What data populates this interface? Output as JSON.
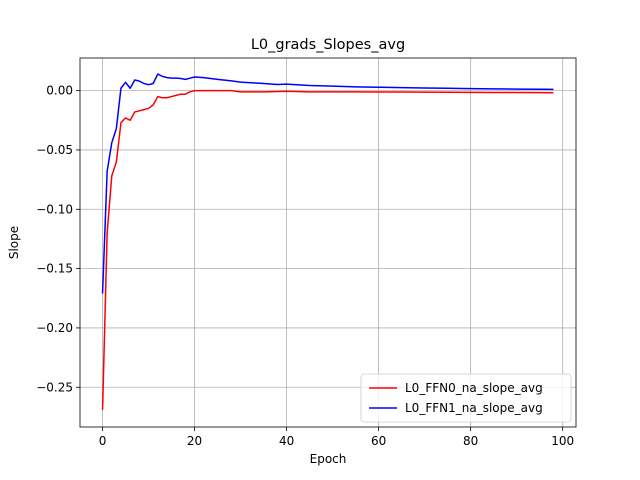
{
  "chart_data": {
    "type": "line",
    "title": "L0_grads_Slopes_avg",
    "xlabel": "Epoch",
    "ylabel": "Slope",
    "xlim": [
      -4.9,
      102.9
    ],
    "ylim": [
      -0.2835,
      0.0275
    ],
    "xticks": [
      0,
      20,
      40,
      60,
      80,
      100
    ],
    "yticks": [
      -0.25,
      -0.2,
      -0.15,
      -0.1,
      -0.05,
      0.0
    ],
    "xtick_labels": [
      "0",
      "20",
      "40",
      "60",
      "80",
      "100"
    ],
    "ytick_labels": [
      "−0.25",
      "−0.20",
      "−0.15",
      "−0.10",
      "−0.05",
      "0.00"
    ],
    "grid": true,
    "legend_position": "lower-right",
    "series": [
      {
        "name": "L0_FFN0_na_slope_avg",
        "color": "#ff0000",
        "points": [
          [
            0,
            -0.269
          ],
          [
            1,
            -0.12
          ],
          [
            2,
            -0.072
          ],
          [
            3,
            -0.06
          ],
          [
            4,
            -0.027
          ],
          [
            5,
            -0.023
          ],
          [
            6,
            -0.025
          ],
          [
            7,
            -0.018
          ],
          [
            8,
            -0.017
          ],
          [
            9,
            -0.016
          ],
          [
            10,
            -0.015
          ],
          [
            11,
            -0.012
          ],
          [
            12,
            -0.005
          ],
          [
            13,
            -0.006
          ],
          [
            14,
            -0.006
          ],
          [
            15,
            -0.005
          ],
          [
            16,
            -0.004
          ],
          [
            17,
            -0.003
          ],
          [
            18,
            -0.003
          ],
          [
            19,
            -0.001
          ],
          [
            20,
            0.0
          ],
          [
            22,
            0.0
          ],
          [
            24,
            0.0
          ],
          [
            26,
            0.0
          ],
          [
            28,
            0.0
          ],
          [
            30,
            -0.001
          ],
          [
            35,
            -0.001
          ],
          [
            40,
            -0.0005
          ],
          [
            45,
            -0.001
          ],
          [
            50,
            -0.001
          ],
          [
            55,
            -0.001
          ],
          [
            60,
            -0.0012
          ],
          [
            65,
            -0.0012
          ],
          [
            70,
            -0.0013
          ],
          [
            75,
            -0.0014
          ],
          [
            80,
            -0.0015
          ],
          [
            85,
            -0.0016
          ],
          [
            90,
            -0.0016
          ],
          [
            95,
            -0.0017
          ],
          [
            98,
            -0.0018
          ]
        ]
      },
      {
        "name": "L0_FFN1_na_slope_avg",
        "color": "#0000ff",
        "points": [
          [
            0,
            -0.171
          ],
          [
            1,
            -0.068
          ],
          [
            2,
            -0.044
          ],
          [
            3,
            -0.032
          ],
          [
            4,
            0.002
          ],
          [
            5,
            0.007
          ],
          [
            6,
            0.002
          ],
          [
            7,
            0.009
          ],
          [
            8,
            0.008
          ],
          [
            9,
            0.006
          ],
          [
            10,
            0.005
          ],
          [
            11,
            0.006
          ],
          [
            12,
            0.014
          ],
          [
            13,
            0.012
          ],
          [
            14,
            0.011
          ],
          [
            15,
            0.0105
          ],
          [
            16,
            0.0105
          ],
          [
            17,
            0.0102
          ],
          [
            18,
            0.0095
          ],
          [
            19,
            0.0105
          ],
          [
            20,
            0.0115
          ],
          [
            22,
            0.011
          ],
          [
            25,
            0.0095
          ],
          [
            28,
            0.0082
          ],
          [
            30,
            0.0072
          ],
          [
            35,
            0.006
          ],
          [
            38,
            0.0052
          ],
          [
            40,
            0.0055
          ],
          [
            45,
            0.0043
          ],
          [
            50,
            0.0038
          ],
          [
            55,
            0.0032
          ],
          [
            60,
            0.0029
          ],
          [
            65,
            0.0025
          ],
          [
            70,
            0.0022
          ],
          [
            75,
            0.002
          ],
          [
            80,
            0.0017
          ],
          [
            85,
            0.0015
          ],
          [
            90,
            0.0013
          ],
          [
            95,
            0.0012
          ],
          [
            98,
            0.0011
          ]
        ]
      }
    ]
  }
}
